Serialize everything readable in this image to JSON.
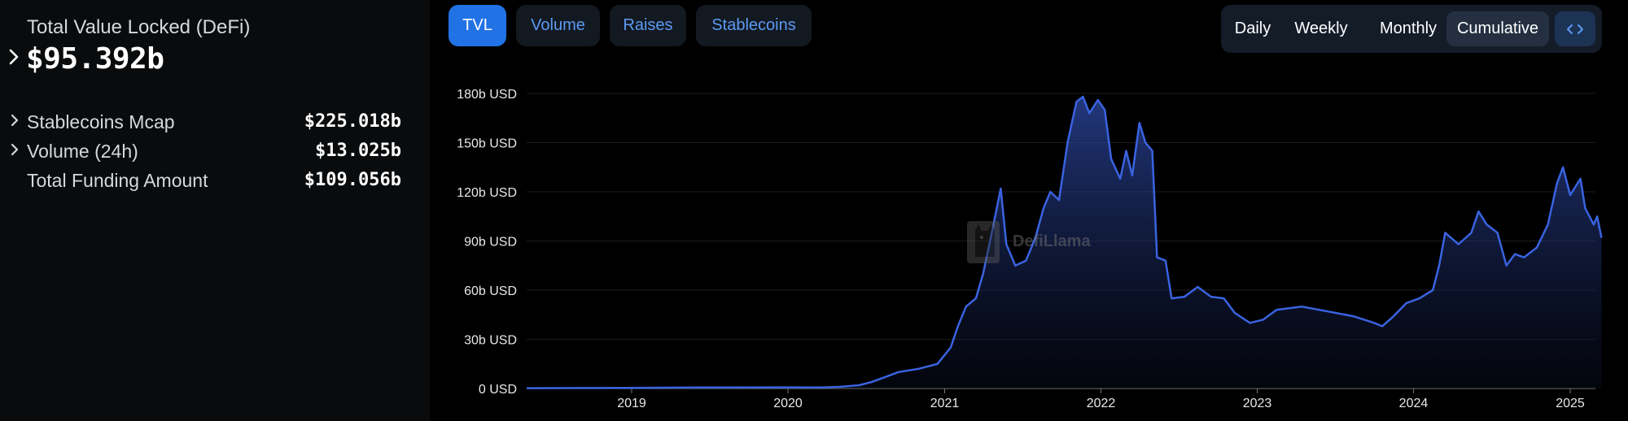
{
  "summary": {
    "tvl_label": "Total Value Locked (DeFi)",
    "tvl_value": "$95.392b",
    "stats": [
      {
        "label": "Stablecoins Mcap",
        "value": "$225.018b",
        "expandable": true
      },
      {
        "label": "Volume (24h)",
        "value": "$13.025b",
        "expandable": true
      },
      {
        "label": "Total Funding Amount",
        "value": "$109.056b",
        "expandable": false
      }
    ]
  },
  "tabs": [
    {
      "label": "TVL",
      "active": true
    },
    {
      "label": "Volume",
      "active": false
    },
    {
      "label": "Raises",
      "active": false
    },
    {
      "label": "Stablecoins",
      "active": false
    }
  ],
  "period": {
    "options": [
      "Daily",
      "Weekly",
      "Monthly",
      "Cumulative"
    ],
    "selected": "Cumulative",
    "embed_icon": "code-icon"
  },
  "watermark": {
    "text": "DefiLlama",
    "icon": "llama-logo-icon"
  },
  "colors": {
    "accent": "#2172e5",
    "line": "#3a63e0",
    "tab_text": "#5b9af3",
    "background": "#000000",
    "panel": "#090b0d"
  },
  "chart_data": {
    "type": "area",
    "title": "",
    "xlabel": "",
    "ylabel": "",
    "unit": "USD",
    "ylim": [
      0,
      180
    ],
    "y_ticks": [
      "0 USD",
      "30b USD",
      "60b USD",
      "90b USD",
      "120b USD",
      "150b USD",
      "180b USD"
    ],
    "x_ticks": [
      "2019",
      "2020",
      "2021",
      "2022",
      "2023",
      "2024",
      "2025"
    ],
    "grid": true,
    "legend": "none",
    "series": [
      {
        "values_unit": "billions USD",
        "points": [
          [
            "2018-05-01",
            0.2
          ],
          [
            "2018-09-01",
            0.3
          ],
          [
            "2019-01-01",
            0.4
          ],
          [
            "2019-06-01",
            0.6
          ],
          [
            "2020-01-01",
            0.7
          ],
          [
            "2020-03-15",
            0.6
          ],
          [
            "2020-05-01",
            1.0
          ],
          [
            "2020-06-15",
            2.0
          ],
          [
            "2020-07-15",
            4.0
          ],
          [
            "2020-08-15",
            7.0
          ],
          [
            "2020-09-15",
            10.0
          ],
          [
            "2020-11-01",
            12.0
          ],
          [
            "2020-12-15",
            15.0
          ],
          [
            "2021-01-15",
            25.0
          ],
          [
            "2021-02-01",
            38.0
          ],
          [
            "2021-02-20",
            50.0
          ],
          [
            "2021-03-15",
            55.0
          ],
          [
            "2021-04-01",
            70.0
          ],
          [
            "2021-04-25",
            100.0
          ],
          [
            "2021-05-12",
            122.0
          ],
          [
            "2021-05-25",
            88.0
          ],
          [
            "2021-06-15",
            75.0
          ],
          [
            "2021-07-10",
            78.0
          ],
          [
            "2021-08-01",
            92.0
          ],
          [
            "2021-08-20",
            110.0
          ],
          [
            "2021-09-05",
            120.0
          ],
          [
            "2021-09-25",
            115.0
          ],
          [
            "2021-10-15",
            150.0
          ],
          [
            "2021-11-05",
            175.0
          ],
          [
            "2021-11-20",
            178.0
          ],
          [
            "2021-12-05",
            168.0
          ],
          [
            "2021-12-25",
            176.0
          ],
          [
            "2022-01-10",
            170.0
          ],
          [
            "2022-01-25",
            140.0
          ],
          [
            "2022-02-15",
            128.0
          ],
          [
            "2022-03-01",
            145.0
          ],
          [
            "2022-03-15",
            130.0
          ],
          [
            "2022-04-01",
            162.0
          ],
          [
            "2022-04-15",
            150.0
          ],
          [
            "2022-05-01",
            145.0
          ],
          [
            "2022-05-12",
            80.0
          ],
          [
            "2022-06-01",
            78.0
          ],
          [
            "2022-06-15",
            55.0
          ],
          [
            "2022-07-15",
            56.0
          ],
          [
            "2022-08-15",
            62.0
          ],
          [
            "2022-09-15",
            56.0
          ],
          [
            "2022-10-15",
            55.0
          ],
          [
            "2022-11-10",
            46.0
          ],
          [
            "2022-12-15",
            40.0
          ],
          [
            "2023-01-15",
            42.0
          ],
          [
            "2023-02-15",
            48.0
          ],
          [
            "2023-04-15",
            50.0
          ],
          [
            "2023-06-15",
            47.0
          ],
          [
            "2023-08-15",
            44.0
          ],
          [
            "2023-10-01",
            40.0
          ],
          [
            "2023-10-20",
            38.0
          ],
          [
            "2023-11-15",
            44.0
          ],
          [
            "2023-12-15",
            52.0
          ],
          [
            "2024-01-15",
            55.0
          ],
          [
            "2024-02-15",
            60.0
          ],
          [
            "2024-03-01",
            75.0
          ],
          [
            "2024-03-15",
            95.0
          ],
          [
            "2024-04-15",
            88.0
          ],
          [
            "2024-05-15",
            95.0
          ],
          [
            "2024-06-01",
            108.0
          ],
          [
            "2024-06-20",
            100.0
          ],
          [
            "2024-07-15",
            95.0
          ],
          [
            "2024-08-05",
            75.0
          ],
          [
            "2024-08-25",
            82.0
          ],
          [
            "2024-09-15",
            80.0
          ],
          [
            "2024-10-15",
            86.0
          ],
          [
            "2024-11-10",
            100.0
          ],
          [
            "2024-12-01",
            125.0
          ],
          [
            "2024-12-15",
            135.0
          ],
          [
            "2025-01-01",
            118.0
          ],
          [
            "2025-01-25",
            128.0
          ],
          [
            "2025-02-05",
            110.0
          ],
          [
            "2025-02-25",
            100.0
          ],
          [
            "2025-03-05",
            105.0
          ],
          [
            "2025-03-15",
            92.0
          ]
        ]
      }
    ]
  }
}
